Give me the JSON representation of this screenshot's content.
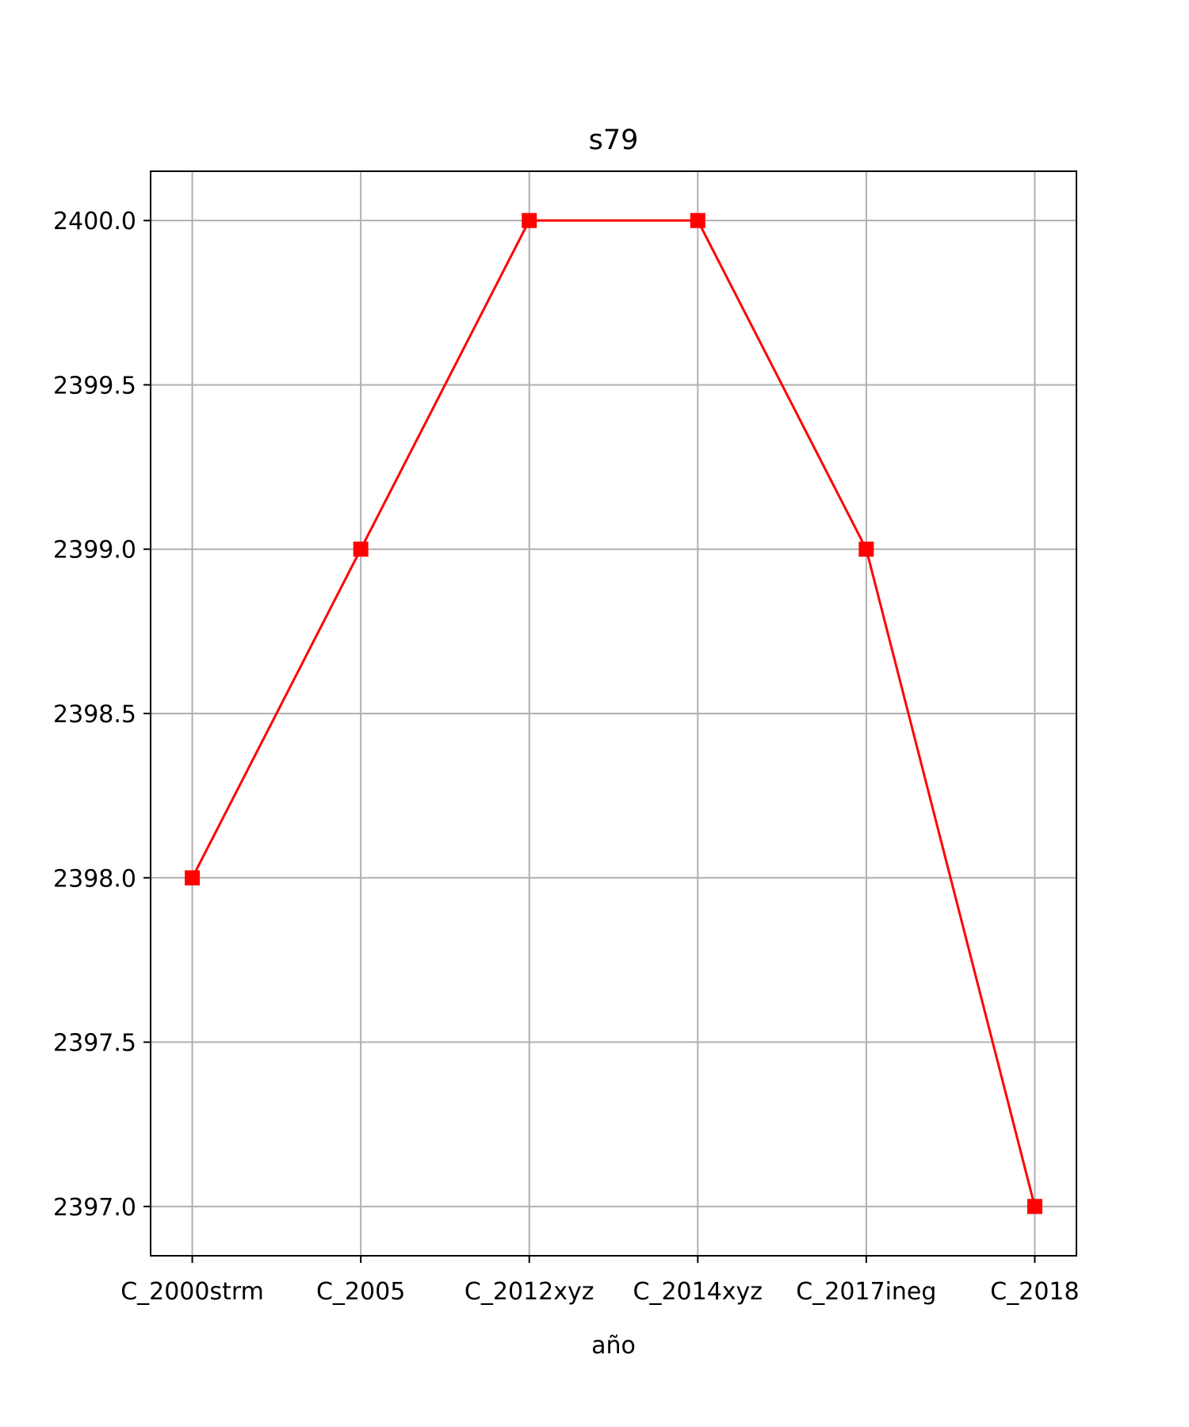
{
  "chart_data": {
    "type": "line",
    "title": "s79",
    "xlabel": "año",
    "ylabel": "",
    "categories": [
      "C_2000strm",
      "C_2005",
      "C_2012xyz",
      "C_2014xyz",
      "C_2017ineg",
      "C_2018"
    ],
    "series": [
      {
        "values": [
          2398.0,
          2399.0,
          2400.0,
          2400.0,
          2399.0,
          2397.0
        ],
        "color": "#ff0000",
        "marker": "square"
      }
    ],
    "ylim": [
      2396.85,
      2400.15
    ],
    "yticks": [
      2397.0,
      2397.5,
      2398.0,
      2398.5,
      2399.0,
      2399.5,
      2400.0
    ],
    "ytick_labels": [
      "2397.0",
      "2397.5",
      "2398.0",
      "2398.5",
      "2399.0",
      "2399.5",
      "2400.0"
    ],
    "grid": true,
    "legend": false
  }
}
